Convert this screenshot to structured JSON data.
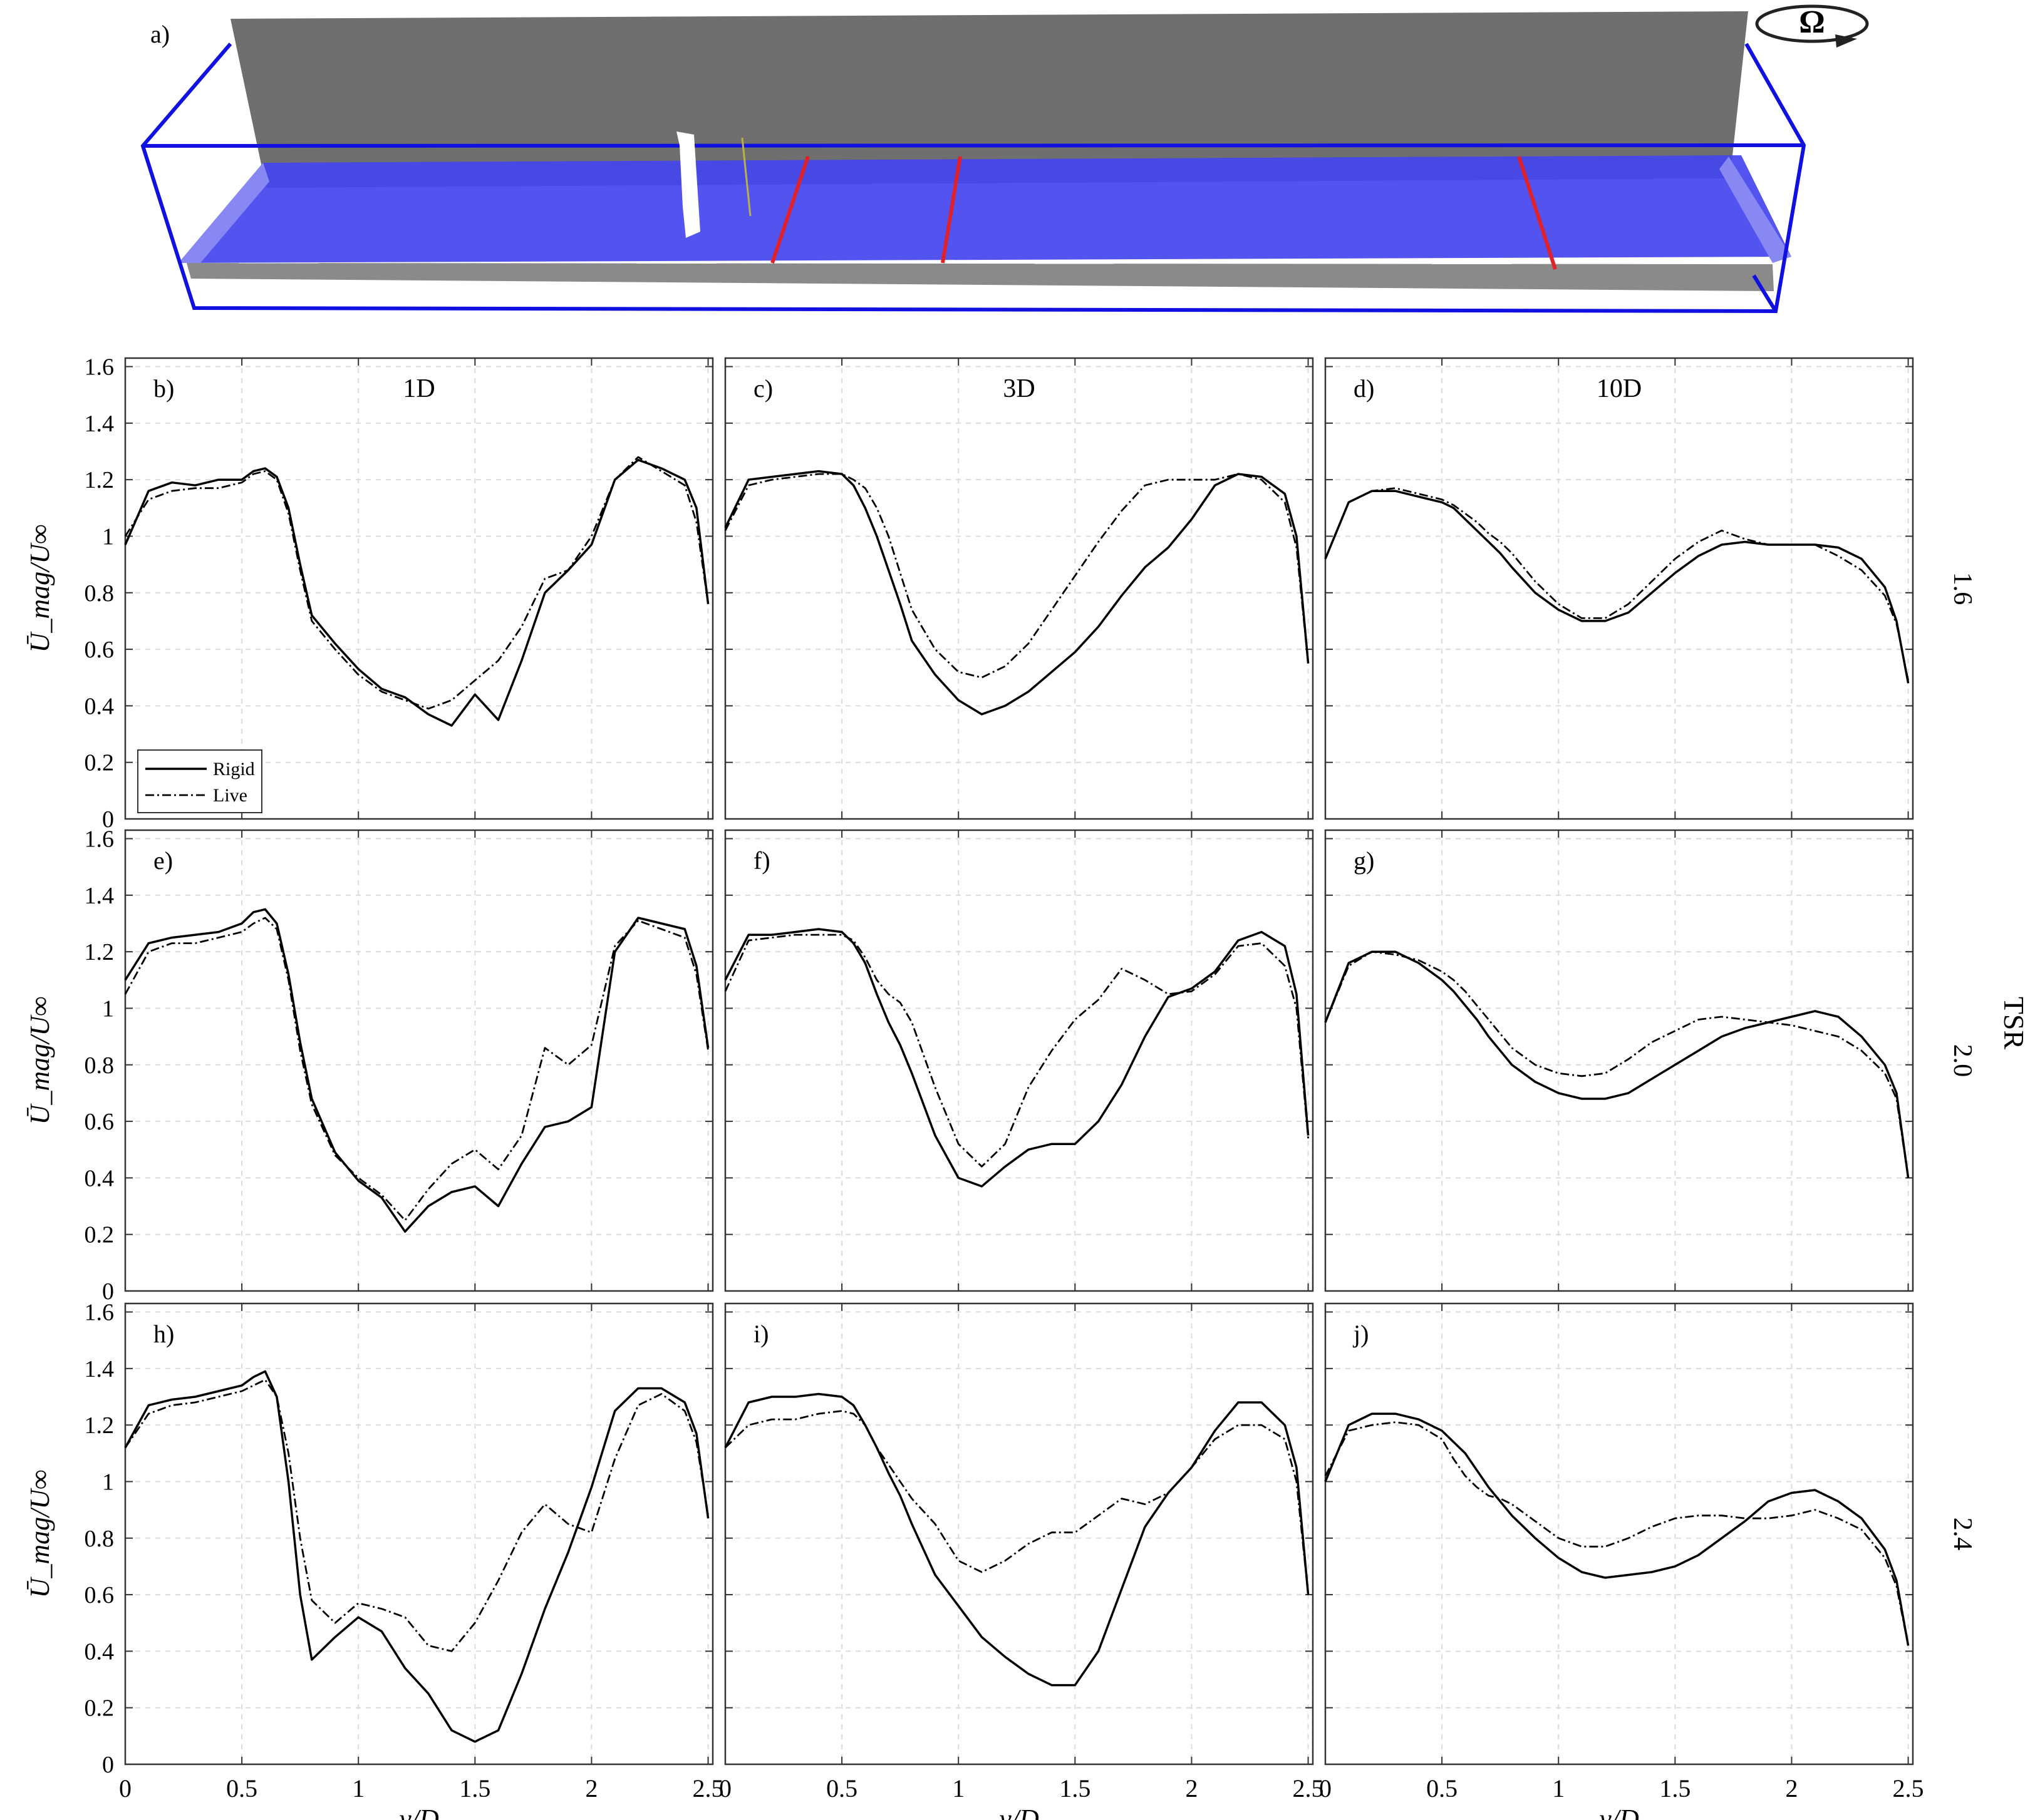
{
  "panel_a": {
    "label": "a)",
    "omega": "Ω"
  },
  "axis_labels": {
    "ylabel": "Ū_mag/U∞",
    "xlabel": "y/D",
    "tsr_title": "TSR"
  },
  "column_titles": [
    "1D",
    "3D",
    "10D"
  ],
  "row_titles": [
    "1.6",
    "2.0",
    "2.4"
  ],
  "panel_labels": [
    [
      "b)",
      "c)",
      "d)"
    ],
    [
      "e)",
      "f)",
      "g)"
    ],
    [
      "h)",
      "i)",
      "j)"
    ]
  ],
  "legend": {
    "items": [
      "Rigid",
      "Live"
    ]
  },
  "x_ticks": [
    "0",
    "0.5",
    "1",
    "1.5",
    "2",
    "2.5"
  ],
  "y_ticks": [
    "0",
    "0.2",
    "0.4",
    "0.6",
    "0.8",
    "1",
    "1.2",
    "1.4",
    "1.6"
  ],
  "colors": {
    "tunnel_edges": "#1010e0",
    "wall": "#6f6f6f",
    "plane": "#4444ee",
    "probe_lines": "#e0202a",
    "curves": "#000000"
  },
  "chart_data": {
    "type": "line",
    "xlim": [
      0,
      2.5
    ],
    "ylim": [
      0,
      1.6
    ],
    "grid": true,
    "legend_placement": "bottom-left",
    "series_names": [
      "Rigid",
      "Live"
    ],
    "x": [
      0,
      0.1,
      0.2,
      0.3,
      0.4,
      0.5,
      0.55,
      0.6,
      0.65,
      0.7,
      0.75,
      0.8,
      0.9,
      1.0,
      1.1,
      1.2,
      1.3,
      1.4,
      1.5,
      1.6,
      1.7,
      1.8,
      1.9,
      2.0,
      2.1,
      2.2,
      2.3,
      2.4,
      2.45,
      2.5
    ],
    "panels": [
      {
        "label": "b)",
        "row_tsr": "1.6",
        "column": "1D",
        "rigid": [
          0.97,
          1.16,
          1.19,
          1.18,
          1.2,
          1.2,
          1.23,
          1.24,
          1.21,
          1.1,
          0.9,
          0.72,
          0.62,
          0.53,
          0.46,
          0.43,
          0.37,
          0.33,
          0.44,
          0.35,
          0.56,
          0.8,
          0.88,
          0.97,
          1.2,
          1.27,
          1.24,
          1.2,
          1.1,
          0.76
        ],
        "live": [
          1.0,
          1.13,
          1.16,
          1.17,
          1.17,
          1.19,
          1.22,
          1.23,
          1.2,
          1.08,
          0.88,
          0.7,
          0.6,
          0.51,
          0.45,
          0.42,
          0.39,
          0.42,
          0.49,
          0.56,
          0.68,
          0.85,
          0.88,
          1.0,
          1.2,
          1.28,
          1.23,
          1.18,
          1.05,
          0.76
        ]
      },
      {
        "label": "c)",
        "row_tsr": "1.6",
        "column": "3D",
        "rigid": [
          1.03,
          1.2,
          1.21,
          1.22,
          1.23,
          1.22,
          1.18,
          1.1,
          1.0,
          0.88,
          0.76,
          0.63,
          0.51,
          0.42,
          0.37,
          0.4,
          0.45,
          0.52,
          0.59,
          0.68,
          0.79,
          0.89,
          0.96,
          1.06,
          1.18,
          1.22,
          1.21,
          1.15,
          1.0,
          0.55
        ],
        "live": [
          1.02,
          1.18,
          1.2,
          1.21,
          1.22,
          1.22,
          1.2,
          1.17,
          1.1,
          1.0,
          0.87,
          0.74,
          0.6,
          0.52,
          0.5,
          0.54,
          0.62,
          0.74,
          0.86,
          0.98,
          1.09,
          1.18,
          1.2,
          1.2,
          1.2,
          1.22,
          1.2,
          1.12,
          0.96,
          0.55
        ]
      },
      {
        "label": "d)",
        "row_tsr": "1.6",
        "column": "10D",
        "rigid": [
          0.92,
          1.12,
          1.16,
          1.16,
          1.14,
          1.12,
          1.1,
          1.06,
          1.02,
          0.98,
          0.94,
          0.89,
          0.8,
          0.74,
          0.7,
          0.7,
          0.73,
          0.8,
          0.87,
          0.93,
          0.97,
          0.98,
          0.97,
          0.97,
          0.97,
          0.96,
          0.92,
          0.82,
          0.7,
          0.48
        ],
        "live": [
          0.92,
          1.12,
          1.16,
          1.17,
          1.15,
          1.13,
          1.11,
          1.08,
          1.05,
          1.01,
          0.98,
          0.94,
          0.84,
          0.76,
          0.71,
          0.71,
          0.76,
          0.84,
          0.92,
          0.98,
          1.02,
          0.99,
          0.97,
          0.97,
          0.97,
          0.93,
          0.88,
          0.79,
          0.69,
          0.49
        ]
      },
      {
        "label": "e)",
        "row_tsr": "2.0",
        "column": "1D",
        "rigid": [
          1.1,
          1.23,
          1.25,
          1.26,
          1.27,
          1.3,
          1.34,
          1.35,
          1.3,
          1.12,
          0.88,
          0.68,
          0.49,
          0.39,
          0.33,
          0.21,
          0.3,
          0.35,
          0.37,
          0.3,
          0.45,
          0.58,
          0.6,
          0.65,
          1.2,
          1.32,
          1.3,
          1.28,
          1.15,
          0.86
        ],
        "live": [
          1.05,
          1.2,
          1.23,
          1.23,
          1.25,
          1.27,
          1.3,
          1.32,
          1.28,
          1.1,
          0.85,
          0.66,
          0.48,
          0.4,
          0.34,
          0.25,
          0.36,
          0.45,
          0.5,
          0.43,
          0.55,
          0.86,
          0.8,
          0.87,
          1.22,
          1.31,
          1.28,
          1.25,
          1.12,
          0.85
        ]
      },
      {
        "label": "f)",
        "row_tsr": "2.0",
        "column": "3D",
        "rigid": [
          1.1,
          1.26,
          1.26,
          1.27,
          1.28,
          1.27,
          1.23,
          1.16,
          1.05,
          0.95,
          0.87,
          0.77,
          0.55,
          0.4,
          0.37,
          0.44,
          0.5,
          0.52,
          0.52,
          0.6,
          0.73,
          0.9,
          1.04,
          1.07,
          1.13,
          1.24,
          1.27,
          1.22,
          1.05,
          0.55
        ],
        "live": [
          1.06,
          1.24,
          1.25,
          1.26,
          1.26,
          1.26,
          1.24,
          1.18,
          1.1,
          1.05,
          1.02,
          0.95,
          0.72,
          0.52,
          0.44,
          0.52,
          0.72,
          0.85,
          0.96,
          1.03,
          1.14,
          1.1,
          1.05,
          1.06,
          1.12,
          1.22,
          1.23,
          1.15,
          1.0,
          0.54
        ]
      },
      {
        "label": "g)",
        "row_tsr": "2.0",
        "column": "10D",
        "rigid": [
          0.95,
          1.16,
          1.2,
          1.2,
          1.16,
          1.1,
          1.06,
          1.01,
          0.96,
          0.9,
          0.85,
          0.8,
          0.74,
          0.7,
          0.68,
          0.68,
          0.7,
          0.75,
          0.8,
          0.85,
          0.9,
          0.93,
          0.95,
          0.97,
          0.99,
          0.97,
          0.9,
          0.8,
          0.7,
          0.4
        ],
        "live": [
          0.95,
          1.15,
          1.2,
          1.19,
          1.17,
          1.13,
          1.1,
          1.06,
          1.01,
          0.96,
          0.91,
          0.86,
          0.8,
          0.77,
          0.76,
          0.77,
          0.82,
          0.88,
          0.92,
          0.96,
          0.97,
          0.96,
          0.95,
          0.94,
          0.92,
          0.9,
          0.85,
          0.77,
          0.68,
          0.4
        ]
      },
      {
        "label": "h)",
        "row_tsr": "2.4",
        "column": "1D",
        "rigid": [
          1.12,
          1.27,
          1.29,
          1.3,
          1.32,
          1.34,
          1.37,
          1.39,
          1.3,
          1.0,
          0.6,
          0.37,
          0.45,
          0.52,
          0.47,
          0.34,
          0.25,
          0.12,
          0.08,
          0.12,
          0.32,
          0.55,
          0.75,
          0.98,
          1.25,
          1.33,
          1.33,
          1.28,
          1.17,
          0.87
        ],
        "live": [
          1.12,
          1.24,
          1.27,
          1.28,
          1.3,
          1.32,
          1.34,
          1.36,
          1.3,
          1.1,
          0.8,
          0.58,
          0.5,
          0.57,
          0.55,
          0.52,
          0.42,
          0.4,
          0.5,
          0.65,
          0.82,
          0.92,
          0.85,
          0.82,
          1.08,
          1.27,
          1.31,
          1.25,
          1.14,
          0.88
        ]
      },
      {
        "label": "i)",
        "row_tsr": "2.4",
        "column": "3D",
        "rigid": [
          1.12,
          1.28,
          1.3,
          1.3,
          1.31,
          1.3,
          1.27,
          1.2,
          1.12,
          1.03,
          0.95,
          0.85,
          0.67,
          0.56,
          0.45,
          0.38,
          0.32,
          0.28,
          0.28,
          0.4,
          0.62,
          0.84,
          0.96,
          1.05,
          1.18,
          1.28,
          1.28,
          1.2,
          1.05,
          0.6
        ],
        "live": [
          1.12,
          1.2,
          1.22,
          1.22,
          1.24,
          1.25,
          1.24,
          1.2,
          1.12,
          1.06,
          1.0,
          0.94,
          0.85,
          0.72,
          0.68,
          0.72,
          0.78,
          0.82,
          0.82,
          0.88,
          0.94,
          0.92,
          0.96,
          1.05,
          1.15,
          1.2,
          1.2,
          1.15,
          1.0,
          0.6
        ]
      },
      {
        "label": "j)",
        "row_tsr": "2.4",
        "column": "10D",
        "rigid": [
          1.0,
          1.2,
          1.24,
          1.24,
          1.22,
          1.18,
          1.14,
          1.1,
          1.04,
          0.98,
          0.93,
          0.88,
          0.8,
          0.73,
          0.68,
          0.66,
          0.67,
          0.68,
          0.7,
          0.74,
          0.8,
          0.86,
          0.93,
          0.96,
          0.97,
          0.93,
          0.87,
          0.76,
          0.65,
          0.42
        ],
        "live": [
          1.02,
          1.18,
          1.2,
          1.21,
          1.2,
          1.15,
          1.08,
          1.02,
          0.98,
          0.95,
          0.94,
          0.92,
          0.86,
          0.8,
          0.77,
          0.77,
          0.8,
          0.84,
          0.87,
          0.88,
          0.88,
          0.87,
          0.87,
          0.88,
          0.9,
          0.87,
          0.83,
          0.73,
          0.63,
          0.42
        ]
      }
    ]
  }
}
